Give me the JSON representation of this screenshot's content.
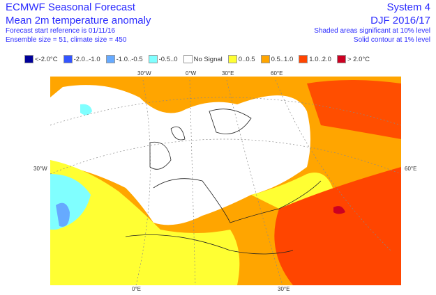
{
  "header": {
    "title": "ECMWF Seasonal Forecast",
    "subtitle": "Mean 2m temperature anomaly",
    "start_ref": "Forecast start reference is 01/11/16",
    "ensemble": "Ensemble size = 51, climate size = 450",
    "system": "System 4",
    "period": "DJF 2016/17",
    "significance": "Shaded areas significant at 10% level",
    "contour": "Solid contour at 1% level"
  },
  "legend": [
    {
      "label": "<-2.0°C",
      "color": "#000099"
    },
    {
      "label": "-2.0..-1.0",
      "color": "#3355ff"
    },
    {
      "label": "-1.0..-0.5",
      "color": "#66aaff"
    },
    {
      "label": "-0.5..0",
      "color": "#80ffff"
    },
    {
      "label": "No Signal",
      "color": "#ffffff"
    },
    {
      "label": "0..0.5",
      "color": "#ffff33"
    },
    {
      "label": "0.5..1.0",
      "color": "#ffa500"
    },
    {
      "label": "1.0..2.0",
      "color": "#ff4500"
    },
    {
      "label": "> 2.0°C",
      "color": "#cc0022"
    }
  ],
  "axis_labels": {
    "top": [
      "30°W",
      "0°W",
      "30°E",
      "60°E"
    ],
    "left": "30°W",
    "right": "60°E",
    "bottom": [
      "0°E",
      "30°E"
    ]
  }
}
